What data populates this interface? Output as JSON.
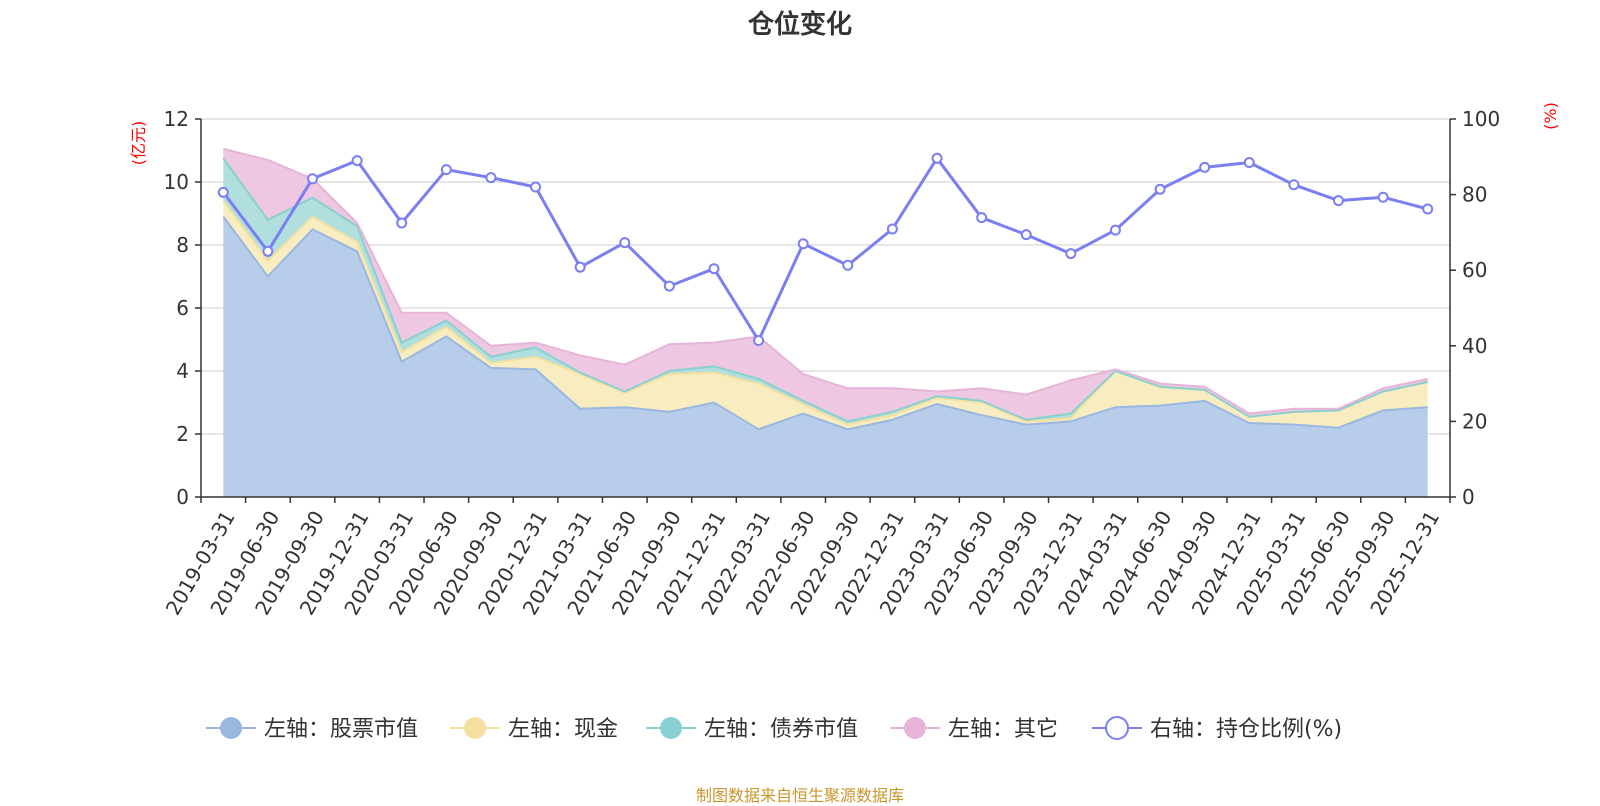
{
  "chart_data": {
    "type": "area",
    "title": "仓位变化",
    "categories": [
      "2019-03-31",
      "2019-06-30",
      "2019-09-30",
      "2019-12-31",
      "2020-03-31",
      "2020-06-30",
      "2020-09-30",
      "2020-12-31",
      "2021-03-31",
      "2021-06-30",
      "2021-09-30",
      "2021-12-31",
      "2022-03-31",
      "2022-06-30",
      "2022-09-30",
      "2022-12-31",
      "2023-03-31",
      "2023-06-30",
      "2023-09-30",
      "2023-12-31",
      "2024-03-31",
      "2024-06-30",
      "2024-09-30",
      "2024-12-31",
      "2025-03-31",
      "2025-06-30",
      "2025-09-30",
      "2025-12-31"
    ],
    "y_left": {
      "unit": "(亿元)",
      "min": 0,
      "max": 12,
      "ticks": [
        "0",
        "2",
        "4",
        "6",
        "8",
        "10",
        "12"
      ]
    },
    "y_right": {
      "unit": "(%)",
      "min": 0,
      "max": 100,
      "ticks": [
        "0",
        "20",
        "40",
        "60",
        "80",
        "100"
      ]
    },
    "series": [
      {
        "name": "左轴：股票市值",
        "axis": "left",
        "color": "#9ab7e0",
        "fill": "#b8cdea",
        "values": [
          8.9,
          7.0,
          8.5,
          7.8,
          4.3,
          5.1,
          4.1,
          4.05,
          2.8,
          2.85,
          2.7,
          3.0,
          2.15,
          2.65,
          2.15,
          2.45,
          2.95,
          2.6,
          2.3,
          2.4,
          2.85,
          2.9,
          3.05,
          2.35,
          2.3,
          2.2,
          2.75,
          2.85
        ]
      },
      {
        "name": "左轴：现金",
        "axis": "left",
        "color": "#f5e0a0",
        "fill": "#f8edc0",
        "values": [
          0.5,
          0.5,
          0.4,
          0.3,
          0.3,
          0.3,
          0.15,
          0.4,
          1.1,
          0.45,
          1.2,
          0.95,
          1.45,
          0.3,
          0.15,
          0.15,
          0.2,
          0.4,
          0.1,
          0.1,
          1.15,
          0.6,
          0.35,
          0.2,
          0.4,
          0.55,
          0.6,
          0.8
        ]
      },
      {
        "name": "左轴：债券市值",
        "axis": "left",
        "color": "#8ad0d0",
        "fill": "#b0dfdd",
        "values": [
          1.35,
          1.3,
          0.6,
          0.5,
          0.3,
          0.2,
          0.2,
          0.3,
          0.05,
          0.05,
          0.1,
          0.2,
          0.15,
          0.1,
          0.1,
          0.1,
          0.05,
          0.05,
          0.05,
          0.15,
          0.0,
          0.0,
          0.0,
          0.0,
          0.0,
          0.0,
          0.0,
          0.0
        ]
      },
      {
        "name": "左轴：其它",
        "axis": "left",
        "color": "#e6b4d8",
        "fill": "#eec8e2",
        "values": [
          0.3,
          1.9,
          0.6,
          0.1,
          0.95,
          0.25,
          0.35,
          0.15,
          0.55,
          0.85,
          0.85,
          0.75,
          1.35,
          0.85,
          1.05,
          0.75,
          0.15,
          0.4,
          0.8,
          1.05,
          0.05,
          0.1,
          0.1,
          0.1,
          0.1,
          0.05,
          0.1,
          0.1
        ]
      },
      {
        "name": "右轴：持仓比例(%)",
        "axis": "right",
        "color": "#7b7ff0",
        "line": true,
        "values": [
          80.6,
          65.0,
          84.2,
          89.0,
          72.5,
          86.6,
          84.5,
          82.0,
          60.8,
          67.3,
          55.8,
          60.4,
          41.4,
          67.0,
          61.3,
          70.9,
          89.6,
          73.9,
          69.4,
          64.4,
          70.6,
          81.4,
          87.2,
          88.5,
          82.6,
          78.4,
          79.3,
          76.2
        ]
      }
    ],
    "legend_position": "bottom",
    "grid": true
  },
  "footer": "制图数据来自恒生聚源数据库"
}
